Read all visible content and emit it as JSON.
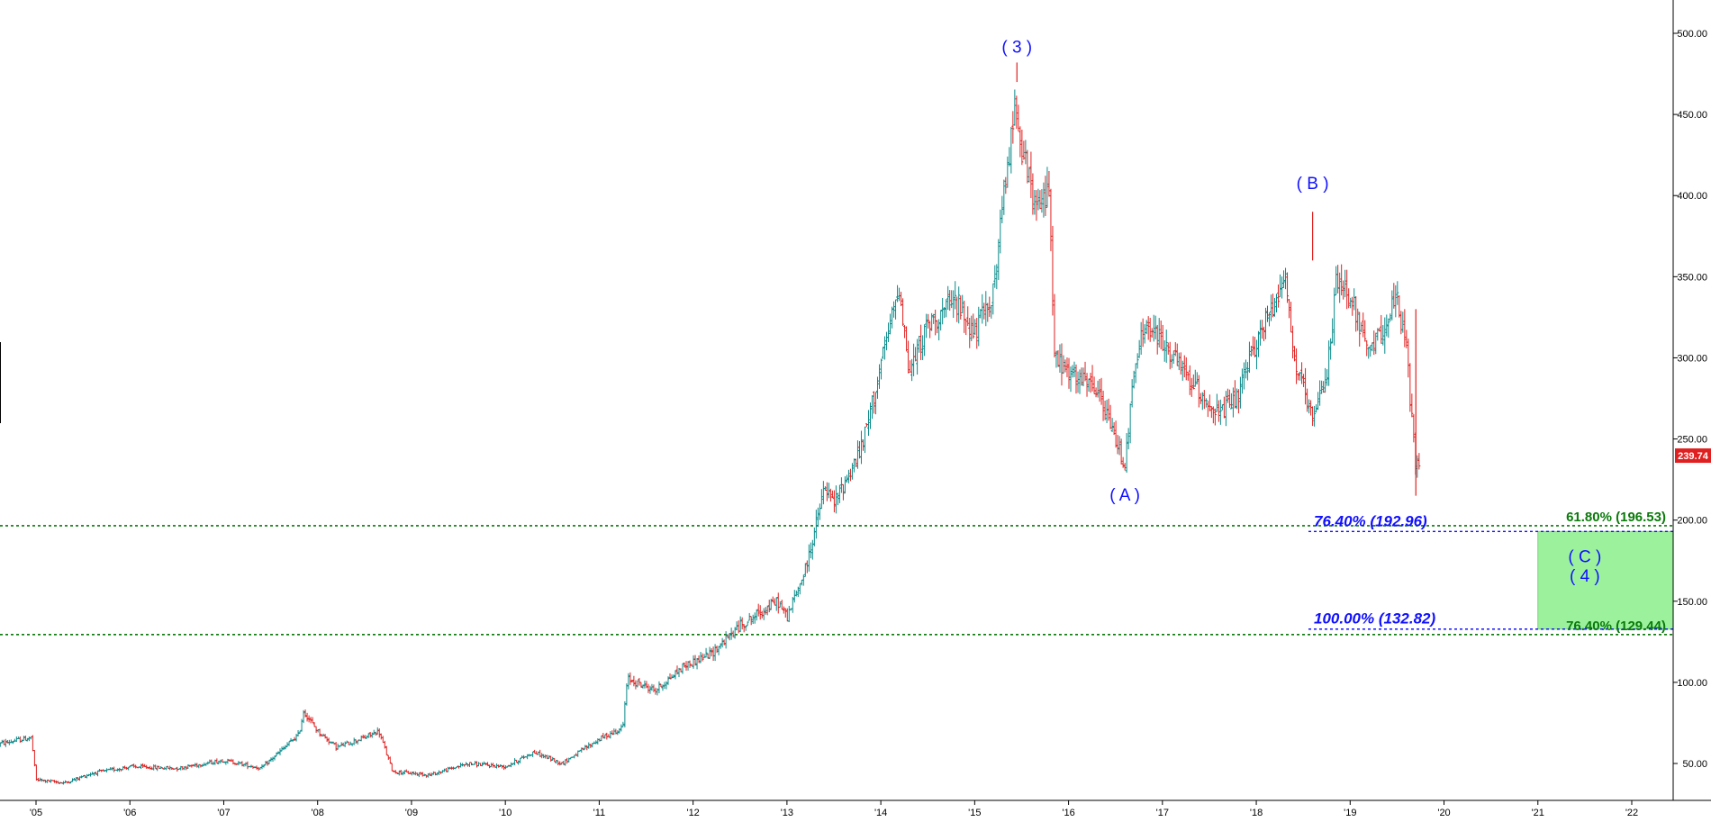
{
  "chart_data": {
    "type": "candlestick",
    "x_ticks": [
      "'05",
      "'06",
      "'07",
      "'08",
      "'09",
      "'10",
      "'11",
      "'12",
      "'13",
      "'14",
      "'15",
      "'16",
      "'17",
      "'18",
      "'19",
      "'20",
      "'21",
      "'22"
    ],
    "y_ticks": [
      "50.00",
      "100.00",
      "150.00",
      "200.00",
      "250.00",
      "300.00",
      "350.00",
      "400.00",
      "450.00",
      "500.00"
    ],
    "ylim": [
      30,
      505
    ],
    "xlim": [
      2004.6,
      2022.4
    ],
    "grid": false,
    "last_price": "239.74",
    "price_path": [
      [
        2004.6,
        62
      ],
      [
        2004.95,
        66
      ],
      [
        2005.0,
        40
      ],
      [
        2005.3,
        38
      ],
      [
        2005.6,
        44
      ],
      [
        2006.0,
        48
      ],
      [
        2006.5,
        47
      ],
      [
        2007.0,
        52
      ],
      [
        2007.4,
        47
      ],
      [
        2007.8,
        68
      ],
      [
        2007.85,
        82
      ],
      [
        2008.0,
        70
      ],
      [
        2008.2,
        60
      ],
      [
        2008.5,
        66
      ],
      [
        2008.65,
        70
      ],
      [
        2008.8,
        45
      ],
      [
        2009.2,
        43
      ],
      [
        2009.6,
        50
      ],
      [
        2010.0,
        48
      ],
      [
        2010.3,
        57
      ],
      [
        2010.6,
        50
      ],
      [
        2011.0,
        65
      ],
      [
        2011.25,
        72
      ],
      [
        2011.3,
        102
      ],
      [
        2011.6,
        95
      ],
      [
        2011.9,
        110
      ],
      [
        2012.2,
        118
      ],
      [
        2012.5,
        135
      ],
      [
        2012.9,
        150
      ],
      [
        2013.0,
        140
      ],
      [
        2013.2,
        170
      ],
      [
        2013.4,
        220
      ],
      [
        2013.5,
        210
      ],
      [
        2013.8,
        245
      ],
      [
        2014.1,
        320
      ],
      [
        2014.2,
        345
      ],
      [
        2014.3,
        290
      ],
      [
        2014.5,
        320
      ],
      [
        2014.8,
        335
      ],
      [
        2015.0,
        315
      ],
      [
        2015.2,
        340
      ],
      [
        2015.35,
        420
      ],
      [
        2015.45,
        460
      ],
      [
        2015.5,
        430
      ],
      [
        2015.65,
        390
      ],
      [
        2015.8,
        405
      ],
      [
        2015.85,
        300
      ],
      [
        2016.0,
        290
      ],
      [
        2016.3,
        280
      ],
      [
        2016.5,
        250
      ],
      [
        2016.6,
        235
      ],
      [
        2016.7,
        290
      ],
      [
        2016.8,
        320
      ],
      [
        2017.0,
        310
      ],
      [
        2017.3,
        285
      ],
      [
        2017.6,
        265
      ],
      [
        2017.8,
        275
      ],
      [
        2018.0,
        310
      ],
      [
        2018.2,
        335
      ],
      [
        2018.3,
        355
      ],
      [
        2018.4,
        300
      ],
      [
        2018.6,
        260
      ],
      [
        2018.75,
        290
      ],
      [
        2018.85,
        345
      ],
      [
        2019.0,
        340
      ],
      [
        2019.2,
        300
      ],
      [
        2019.35,
        320
      ],
      [
        2019.5,
        335
      ],
      [
        2019.6,
        305
      ],
      [
        2019.7,
        230
      ],
      [
        2019.75,
        240
      ]
    ],
    "wave_labels": [
      {
        "text": "( 3 )",
        "x": 2015.45,
        "y": 488
      },
      {
        "text": "( A )",
        "x": 2016.6,
        "y": 212
      },
      {
        "text": "( B )",
        "x": 2018.6,
        "y": 404
      },
      {
        "text": "( C )",
        "x": 2021.5,
        "y": 174
      },
      {
        "text": "( 4 )",
        "x": 2021.5,
        "y": 162
      }
    ],
    "fib_levels": [
      {
        "label": "76.40% (192.96)",
        "value": 192.96,
        "color": "#1010ff",
        "style": "blue"
      },
      {
        "label": "100.00% (132.82)",
        "value": 132.82,
        "color": "#1010ff",
        "style": "blue"
      },
      {
        "label": "61.80% (196.53)",
        "value": 196.53,
        "color": "#0a7a0a",
        "style": "green"
      },
      {
        "label": "76.40% (129.44)",
        "value": 129.44,
        "color": "#0a7a0a",
        "style": "green"
      }
    ],
    "target_zone": {
      "from_x": 2021.0,
      "to_x": 2022.4,
      "low": 132.82,
      "high": 192.96,
      "color": "#9cf29c"
    },
    "colors": {
      "up": "#0a8a8a",
      "down": "#e02020",
      "price_tag": "#e02020"
    }
  }
}
